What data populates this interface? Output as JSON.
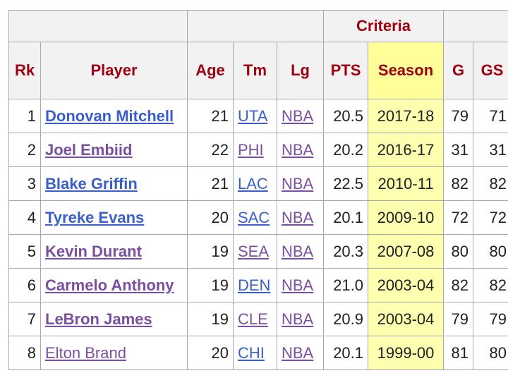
{
  "table": {
    "group_header": "Criteria",
    "columns": [
      "Rk",
      "Player",
      "Age",
      "Tm",
      "Lg",
      "PTS",
      "Season",
      "G",
      "GS"
    ],
    "rows": [
      [
        "1",
        "Donovan Mitchell",
        "21",
        "UTA",
        "NBA",
        "20.5",
        "2017-18",
        "79",
        "71"
      ],
      [
        "2",
        "Joel Embiid",
        "22",
        "PHI",
        "NBA",
        "20.2",
        "2016-17",
        "31",
        "31"
      ],
      [
        "3",
        "Blake Griffin",
        "21",
        "LAC",
        "NBA",
        "22.5",
        "2010-11",
        "82",
        "82"
      ],
      [
        "4",
        "Tyreke Evans",
        "20",
        "SAC",
        "NBA",
        "20.1",
        "2009-10",
        "72",
        "72"
      ],
      [
        "5",
        "Kevin Durant",
        "19",
        "SEA",
        "NBA",
        "20.3",
        "2007-08",
        "80",
        "80"
      ],
      [
        "6",
        "Carmelo Anthony",
        "19",
        "DEN",
        "NBA",
        "21.0",
        "2003-04",
        "82",
        "82"
      ],
      [
        "7",
        "LeBron James",
        "19",
        "CLE",
        "NBA",
        "20.9",
        "2003-04",
        "79",
        "79"
      ],
      [
        "8",
        "Elton Brand",
        "20",
        "CHI",
        "NBA",
        "20.1",
        "1999-00",
        "81",
        "80"
      ]
    ]
  }
}
